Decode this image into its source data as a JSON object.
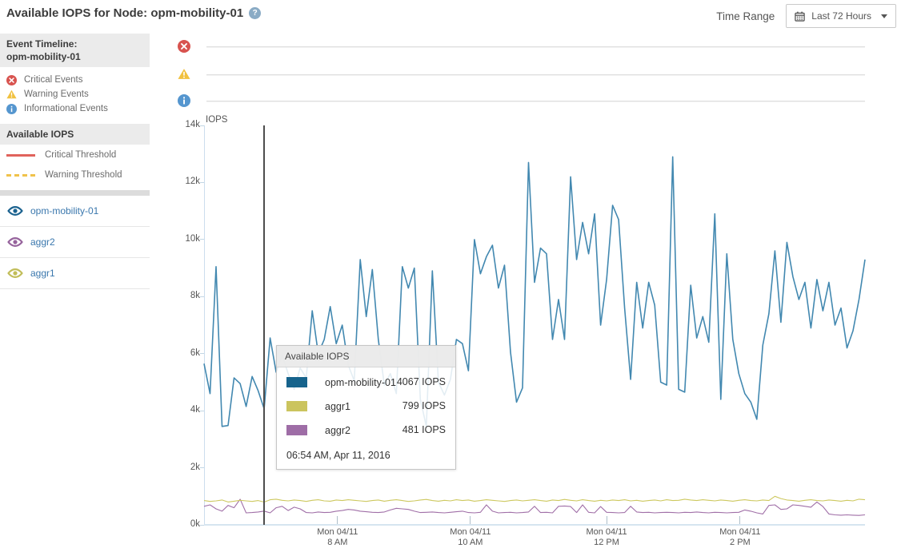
{
  "header": {
    "title": "Available IOPS for Node: opm-mobility-01",
    "help_icon_glyph": "?",
    "time_range_label": "Time Range",
    "time_range_value": "Last 72 Hours"
  },
  "sidebar": {
    "event_timeline_title": "Event Timeline:",
    "event_timeline_subtitle": "opm-mobility-01",
    "event_legend": [
      {
        "label": "Critical Events",
        "icon": "critical-circle-x-icon",
        "color": "#d8534f"
      },
      {
        "label": "Warning Events",
        "icon": "warning-triangle-icon",
        "color": "#f1c13f"
      },
      {
        "label": "Informational Events",
        "icon": "info-circle-icon",
        "color": "#5596cf"
      }
    ],
    "series_panel_title": "Available IOPS",
    "threshold_legend": [
      {
        "label": "Critical Threshold",
        "style": "solid",
        "color": "#e0635c"
      },
      {
        "label": "Warning Threshold",
        "style": "dashed",
        "color": "#f0c24b"
      }
    ],
    "series_items": [
      {
        "label": "opm-mobility-01",
        "color": "#1b628f"
      },
      {
        "label": "aggr2",
        "color": "#96639c"
      },
      {
        "label": "aggr1",
        "color": "#c1bd59"
      }
    ]
  },
  "chart": {
    "unit_label": "IOPS"
  },
  "tooltip": {
    "title": "Available IOPS",
    "rows": [
      {
        "label": "opm-mobility-01",
        "value": "4067 IOPS",
        "color": "#16638c"
      },
      {
        "label": "aggr1",
        "value": "799 IOPS",
        "color": "#cbc45e"
      },
      {
        "label": "aggr2",
        "value": "481 IOPS",
        "color": "#9e6da6"
      }
    ],
    "timestamp": "06:54 AM, Apr 11, 2016"
  },
  "chart_data": {
    "type": "line",
    "title": "Available IOPS for Node: opm-mobility-01",
    "xlabel": "",
    "ylabel": "IOPS",
    "ylim": [
      0,
      14000
    ],
    "grid": false,
    "y_ticks": [
      "0k",
      "2k",
      "4k",
      "6k",
      "8k",
      "10k",
      "12k",
      "14k"
    ],
    "x_ticks": [
      {
        "line1": "Mon 04/11",
        "line2": "8 AM",
        "pos": 0.202
      },
      {
        "line1": "Mon 04/11",
        "line2": "10 AM",
        "pos": 0.403
      },
      {
        "line1": "Mon 04/11",
        "line2": "12 PM",
        "pos": 0.609
      },
      {
        "line1": "Mon 04/11",
        "line2": "2 PM",
        "pos": 0.811
      }
    ],
    "hover_pos": 0.0908,
    "hover_timestamp": "06:54 AM, Apr 11, 2016",
    "hover_values": {
      "opm-mobility-01": 4067,
      "aggr1": 799,
      "aggr2": 481
    },
    "series": [
      {
        "name": "opm-mobility-01",
        "color": "#4288b0",
        "values": [
          5650,
          4600,
          9050,
          3450,
          3480,
          5150,
          4950,
          4150,
          5200,
          4700,
          4067,
          6550,
          5350,
          5950,
          5300,
          4750,
          5500,
          5150,
          7500,
          6000,
          6500,
          7650,
          6350,
          7000,
          5600,
          5050,
          9300,
          7300,
          8950,
          6500,
          4900,
          5300,
          4600,
          9050,
          8300,
          9000,
          4400,
          3450,
          8900,
          5000,
          4550,
          5100,
          6500,
          6350,
          5400,
          10000,
          8800,
          9400,
          9800,
          8300,
          9100,
          6050,
          4300,
          4800,
          12700,
          8500,
          9700,
          9500,
          6500,
          7900,
          6500,
          12200,
          9300,
          10600,
          9500,
          10900,
          7000,
          8600,
          11200,
          10700,
          7600,
          5100,
          8500,
          6900,
          8500,
          7700,
          5000,
          4900,
          12900,
          4750,
          4650,
          8400,
          6550,
          7300,
          6400,
          10900,
          4400,
          9500,
          6500,
          5300,
          4600,
          4300,
          3700,
          6300,
          7400,
          9600,
          7100,
          9900,
          8700,
          7900,
          8500,
          6900,
          8600,
          7500,
          8500,
          7000,
          7600,
          6200,
          6800,
          7900,
          9300
        ]
      },
      {
        "name": "aggr1",
        "color": "#cdc85f",
        "values": [
          850,
          820,
          840,
          870,
          800,
          830,
          860,
          840,
          820,
          850,
          799,
          880,
          900,
          860,
          840,
          870,
          850,
          820,
          860,
          880,
          840,
          830,
          870,
          850,
          880,
          860,
          840,
          820,
          850,
          870,
          830,
          860,
          880,
          850,
          820,
          840,
          870,
          890,
          850,
          830,
          860,
          840,
          880,
          850,
          870,
          830,
          850,
          880,
          860,
          840,
          820,
          850,
          870,
          840,
          860,
          880,
          850,
          830,
          870,
          850,
          890,
          860,
          840,
          880,
          850,
          830,
          860,
          840,
          870,
          850,
          880,
          840,
          860,
          830,
          850,
          870,
          840,
          880,
          850,
          860,
          900,
          870,
          850,
          880,
          860,
          840,
          870,
          850,
          830,
          860,
          880,
          850,
          840,
          870,
          850,
          1000,
          920,
          870,
          850,
          830,
          860,
          880,
          850,
          840,
          870,
          850,
          830,
          860,
          840,
          900,
          880
        ]
      },
      {
        "name": "aggr2",
        "color": "#a06fa7",
        "values": [
          650,
          700,
          560,
          480,
          680,
          600,
          900,
          420,
          430,
          450,
          481,
          420,
          600,
          650,
          500,
          620,
          560,
          430,
          420,
          450,
          430,
          440,
          480,
          500,
          540,
          520,
          480,
          460,
          440,
          430,
          450,
          520,
          580,
          560,
          540,
          480,
          430,
          440,
          450,
          430,
          420,
          440,
          460,
          480,
          430,
          420,
          440,
          700,
          480,
          420,
          430,
          440,
          420,
          430,
          450,
          650,
          430,
          440,
          420,
          650,
          660,
          640,
          430,
          700,
          440,
          420,
          640,
          440,
          430,
          420,
          430,
          650,
          450,
          430,
          440,
          420,
          430,
          440,
          430,
          420,
          440,
          430,
          450,
          430,
          420,
          440,
          430,
          420,
          430,
          440,
          520,
          480,
          420,
          380,
          680,
          700,
          540,
          560,
          700,
          680,
          650,
          620,
          800,
          640,
          380,
          350,
          340,
          350,
          340,
          330,
          350
        ]
      }
    ]
  }
}
